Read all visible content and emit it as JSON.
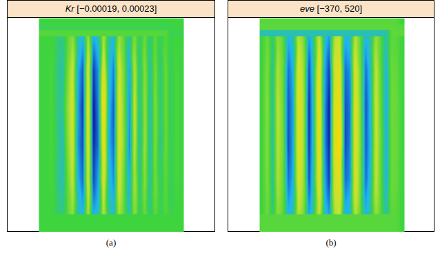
{
  "chart_data": [
    {
      "type": "heatmap",
      "title": "Kr",
      "title_note": "[−0.00019, 0.00023]",
      "caption": "(a)",
      "color_range": [
        -0.00019,
        0.00023
      ],
      "tick_labels": false,
      "cells": [
        [
          0,
          0,
          0,
          -2e-05,
          -4e-05,
          2e-05,
          7e-05,
          -5e-05,
          -9e-05,
          9e-05,
          -0.0001,
          -6e-05,
          0.0001,
          -4e-05,
          -8e-05,
          8e-05,
          2e-05,
          -6e-05,
          6e-05,
          -3e-05,
          4e-05,
          -4e-05,
          3e-05,
          -2e-05,
          2e-05,
          -1e-05,
          0,
          0
        ],
        [
          0,
          0,
          1e-05,
          -3e-05,
          -6e-05,
          4e-05,
          0.00013,
          -9e-05,
          -0.00015,
          0.00016,
          -0.00017,
          -0.00011,
          0.00018,
          -7e-05,
          -0.00013,
          0.00014,
          4e-05,
          -0.00011,
          0.00011,
          -5e-05,
          7e-05,
          -6e-05,
          5e-05,
          -4e-05,
          4e-05,
          -2e-05,
          1e-05,
          0
        ],
        [
          0,
          0,
          1e-05,
          -3e-05,
          -5e-05,
          6e-05,
          0.00015,
          -0.0001,
          -0.00017,
          0.00019,
          -0.00019,
          -0.00012,
          0.00023,
          -8e-05,
          -0.00015,
          0.00017,
          4e-05,
          -0.00012,
          0.00013,
          -6e-05,
          8e-05,
          -7e-05,
          6e-05,
          -4e-05,
          4e-05,
          -2e-05,
          1e-05,
          0
        ],
        [
          0,
          0,
          1e-05,
          -2e-05,
          -7e-05,
          5e-05,
          0.00014,
          -0.00011,
          -0.00016,
          0.00018,
          -0.00018,
          -0.00013,
          0.00021,
          -9e-05,
          -0.00014,
          0.00016,
          5e-05,
          -0.00013,
          0.00012,
          -7e-05,
          9e-05,
          -7e-05,
          6e-05,
          -5e-05,
          4e-05,
          -2e-05,
          1e-05,
          0
        ],
        [
          0,
          0,
          1e-05,
          -3e-05,
          -7e-05,
          3e-05,
          0.00012,
          -9e-05,
          -0.00014,
          0.00015,
          -0.00016,
          -0.0001,
          0.00017,
          -7e-05,
          -0.00012,
          0.00014,
          3e-05,
          -0.0001,
          0.0001,
          -5e-05,
          7e-05,
          -6e-05,
          5e-05,
          -3e-05,
          3e-05,
          -2e-05,
          1e-05,
          0
        ],
        [
          0,
          0,
          0,
          -2e-05,
          -4e-05,
          2e-05,
          8e-05,
          -6e-05,
          -9e-05,
          0.0001,
          -0.0001,
          -7e-05,
          0.00011,
          -4e-05,
          -8e-05,
          9e-05,
          2e-05,
          -7e-05,
          7e-05,
          -3e-05,
          4e-05,
          -4e-05,
          3e-05,
          -2e-05,
          2e-05,
          -1e-05,
          0,
          0
        ]
      ]
    },
    {
      "type": "heatmap",
      "title": "eve",
      "title_note": "[−370, 520]",
      "caption": "(b)",
      "color_range": [
        -370,
        520
      ],
      "tick_labels": false,
      "cells": [
        [
          0,
          90,
          -70,
          150,
          60,
          -180,
          -120,
          240,
          120,
          -210,
          -60,
          290,
          -120,
          -220,
          210,
          270,
          -180,
          -150,
          240,
          60,
          -180,
          -90,
          180,
          30,
          -120,
          60,
          50,
          0
        ],
        [
          0,
          130,
          -110,
          220,
          90,
          -270,
          -180,
          360,
          180,
          -310,
          -90,
          430,
          -180,
          -330,
          310,
          400,
          -270,
          -220,
          360,
          90,
          -270,
          -130,
          270,
          40,
          -180,
          90,
          70,
          0
        ],
        [
          0,
          150,
          -120,
          250,
          100,
          -300,
          -200,
          400,
          200,
          -350,
          -100,
          480,
          -200,
          -370,
          350,
          450,
          -300,
          -250,
          400,
          100,
          -300,
          -150,
          300,
          50,
          -200,
          100,
          80,
          0
        ],
        [
          0,
          140,
          -130,
          240,
          110,
          -310,
          -190,
          410,
          190,
          -340,
          -110,
          470,
          -210,
          -360,
          360,
          520,
          -310,
          -240,
          390,
          110,
          -290,
          -160,
          290,
          60,
          -190,
          90,
          80,
          0
        ],
        [
          0,
          130,
          -110,
          220,
          90,
          -270,
          -180,
          360,
          180,
          -310,
          -90,
          430,
          -180,
          -330,
          310,
          400,
          -270,
          -220,
          360,
          90,
          -270,
          -130,
          270,
          40,
          -180,
          90,
          70,
          0
        ],
        [
          0,
          90,
          -70,
          150,
          60,
          -180,
          -120,
          240,
          120,
          -210,
          -60,
          290,
          -120,
          -220,
          210,
          270,
          -180,
          -150,
          240,
          60,
          -180,
          -90,
          180,
          30,
          -120,
          60,
          50,
          0
        ]
      ]
    }
  ]
}
